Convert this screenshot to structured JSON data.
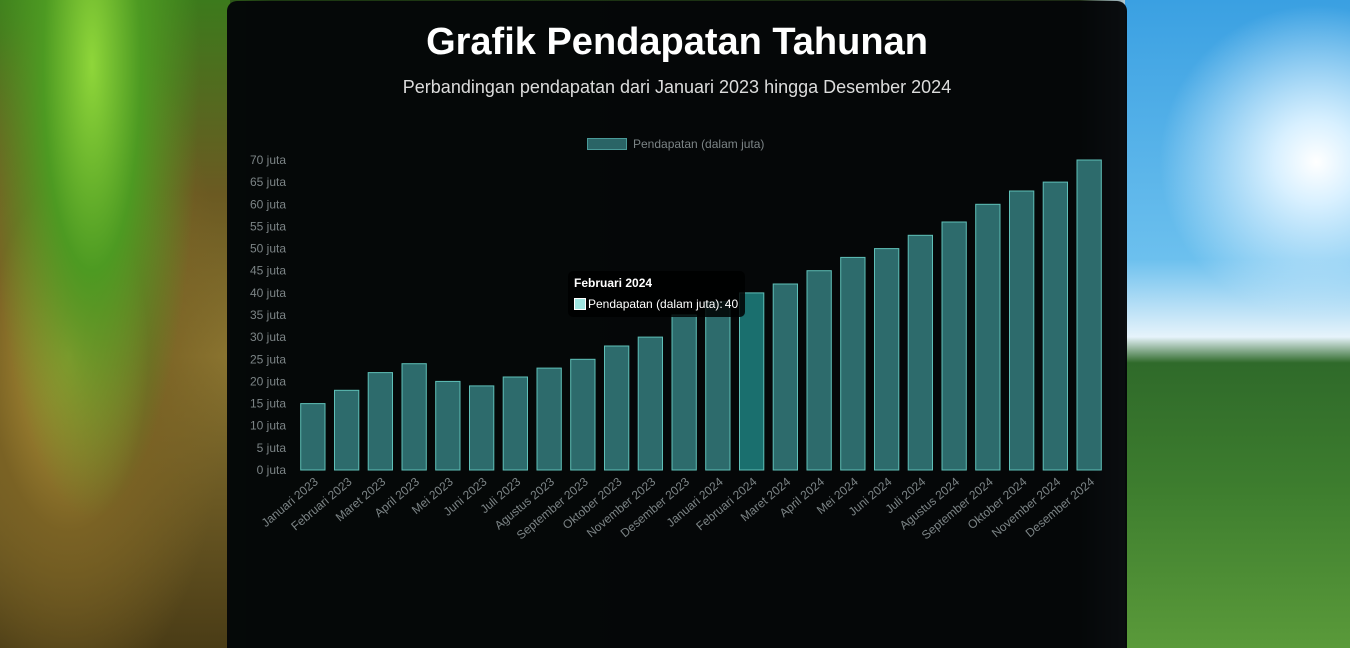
{
  "page": {
    "title": "Grafik Pendapatan Tahunan",
    "subtitle": "Perbandingan pendapatan dari Januari 2023 hingga Desember 2024"
  },
  "colors": {
    "bar_fill": "#2d6b6c",
    "bar_stroke": "#5fc0b8",
    "bar_active_fill": "#1a6f6e",
    "tick_text": "#7c8486",
    "title": "#ffffff",
    "tooltip_swatch": "#9fe5e0"
  },
  "tooltip": {
    "title": "Februari 2024",
    "label": "Pendapatan (dalam juta): ",
    "value": "40"
  },
  "chart_data": {
    "type": "bar",
    "title": "Grafik Pendapatan Tahunan",
    "subtitle": "Perbandingan pendapatan dari Januari 2023 hingga Desember 2024",
    "legend_position": "top",
    "grid": false,
    "ylim": [
      0,
      70
    ],
    "yticks": [
      "0 juta",
      "5 juta",
      "10 juta",
      "15 juta",
      "20 juta",
      "25 juta",
      "30 juta",
      "35 juta",
      "40 juta",
      "45 juta",
      "50 juta",
      "55 juta",
      "60 juta",
      "65 juta",
      "70 juta"
    ],
    "categories": [
      "Januari 2023",
      "Februari 2023",
      "Maret 2023",
      "April 2023",
      "Mei 2023",
      "Juni 2023",
      "Juli 2023",
      "Agustus 2023",
      "September 2023",
      "Oktober 2023",
      "November 2023",
      "Desember 2023",
      "Januari 2024",
      "Februari 2024",
      "Maret 2024",
      "April 2024",
      "Mei 2024",
      "Juni 2024",
      "Juli 2024",
      "Agustus 2024",
      "September 2024",
      "Oktober 2024",
      "November 2024",
      "Desember 2024"
    ],
    "series": [
      {
        "name": "Pendapatan (dalam juta)",
        "values": [
          15,
          18,
          22,
          24,
          20,
          19,
          21,
          23,
          25,
          28,
          30,
          35,
          38,
          40,
          42,
          45,
          48,
          50,
          53,
          56,
          60,
          63,
          65,
          70
        ]
      }
    ],
    "highlighted_category": "Februari 2024"
  }
}
